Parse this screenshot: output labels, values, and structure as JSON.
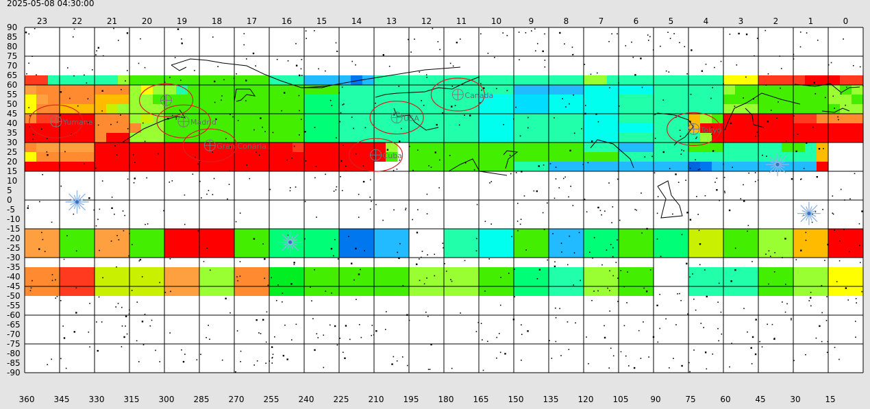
{
  "timestamp": "2025-05-08 04:30:00",
  "hour_labels": [
    "23",
    "22",
    "21",
    "20",
    "19",
    "18",
    "17",
    "16",
    "15",
    "14",
    "13",
    "12",
    "11",
    "10",
    "9",
    "8",
    "7",
    "6",
    "5",
    "4",
    "3",
    "2",
    "1",
    "0"
  ],
  "ra_labels": [
    "360",
    "345",
    "330",
    "315",
    "300",
    "285",
    "270",
    "255",
    "240",
    "225",
    "210",
    "195",
    "180",
    "165",
    "150",
    "135",
    "120",
    "105",
    "90",
    "75",
    "60",
    "45",
    "30",
    "15"
  ],
  "dec_labels": [
    "90",
    "85",
    "80",
    "75",
    "70",
    "65",
    "60",
    "55",
    "50",
    "45",
    "40",
    "35",
    "30",
    "25",
    "20",
    "15",
    "10",
    "5",
    "0",
    "-5",
    "-10",
    "-15",
    "-20",
    "-25",
    "-30",
    "-35",
    "-40",
    "-45",
    "-50",
    "-55",
    "-60",
    "-65",
    "-70",
    "-75",
    "-80",
    "-85",
    "-90"
  ],
  "sites": [
    {
      "name": "Canada",
      "hour": 11.1,
      "dec": 55
    },
    {
      "name": "USA",
      "hour": 12.85,
      "dec": 43
    },
    {
      "name": "Madrid",
      "hour": 18.95,
      "dec": 41
    },
    {
      "name": "Gran Conaria",
      "hour": 18.2,
      "dec": 28.5
    },
    {
      "name": "Cuba",
      "hour": 13.45,
      "dec": 23.5
    },
    {
      "name": "Tokyo",
      "hour": 4.35,
      "dec": 37
    },
    {
      "name": "Yumana",
      "hour": 22.6,
      "dec": 41
    },
    {
      "name": "",
      "hour": 19.45,
      "dec": 52
    }
  ],
  "starbursts": [
    {
      "hour": 22.0,
      "dec": -1
    },
    {
      "hour": 15.9,
      "dec": -22
    },
    {
      "hour": 1.95,
      "dec": 18.5
    },
    {
      "hour": 1.05,
      "dec": -7
    }
  ],
  "colors": {
    "red": "#ff0000",
    "red2": "#ff3a1f",
    "orange": "#ff8a30",
    "orange2": "#ffa040",
    "amber": "#ffbb00",
    "yellow": "#ffff00",
    "yellowgreen": "#c8f000",
    "lime": "#99ff33",
    "green": "#44ee00",
    "green2": "#00ee22",
    "springgreen": "#00ff77",
    "teal": "#22ffaa",
    "aqua": "#00ffee",
    "cyan": "#00ddff",
    "skyblue": "#22bbff",
    "blue": "#0077ee",
    "deepblue": "#0066dd"
  }
}
